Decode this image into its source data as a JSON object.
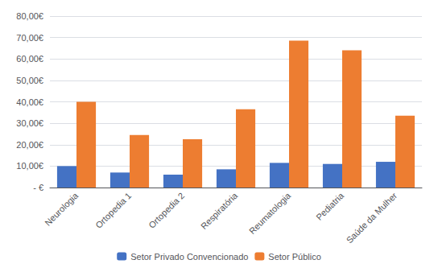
{
  "chart_data": {
    "type": "bar",
    "categories": [
      "Neurologia",
      "Ortopedia 1",
      "Ortopedia 2",
      "Respiratória",
      "Reumatologia",
      "Pediatria",
      "Saúde da Mulher"
    ],
    "series": [
      {
        "name": "Setor Privado Convencionado",
        "color": "#4472C4",
        "values": [
          10.0,
          7.0,
          6.0,
          8.5,
          11.5,
          11.0,
          12.0
        ]
      },
      {
        "name": "Setor Público",
        "color": "#ED7D31",
        "values": [
          40.0,
          24.5,
          22.5,
          36.5,
          68.5,
          64.0,
          33.5
        ]
      }
    ],
    "ylim": [
      0,
      80
    ],
    "yticks": [
      {
        "value": 0,
        "label": "- €"
      },
      {
        "value": 10,
        "label": "10,00€"
      },
      {
        "value": 20,
        "label": "20,00€"
      },
      {
        "value": 30,
        "label": "30,00€"
      },
      {
        "value": 40,
        "label": "40,00€"
      },
      {
        "value": 50,
        "label": "50,00€"
      },
      {
        "value": 60,
        "label": "60,00€"
      },
      {
        "value": 70,
        "label": "70,00€"
      },
      {
        "value": 80,
        "label": "80,00€"
      }
    ],
    "grid": true,
    "legend": "bottom"
  }
}
